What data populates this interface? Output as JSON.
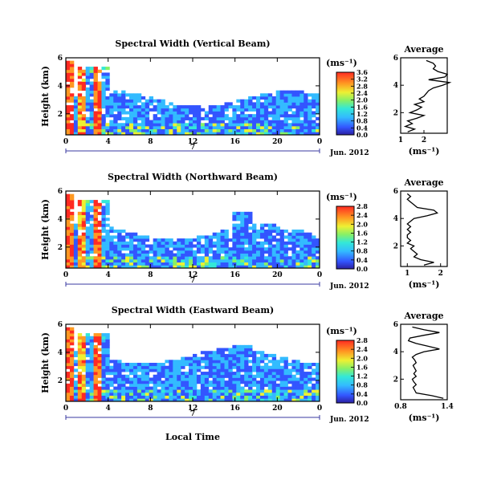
{
  "figure": {
    "date": "Jun. 2012",
    "date_marker": "7",
    "x_axis_title": "Local Time",
    "colorbar_unit": "(ms⁻¹)",
    "average_x_unit": "(ms⁻¹)"
  },
  "chart_data": [
    {
      "type": "heatmap",
      "title": "Spectral Width (Vertical Beam)",
      "ylabel": "Height (km)",
      "x_ticks": [
        "0",
        "4",
        "8",
        "12",
        "16",
        "20",
        "0"
      ],
      "y_ticks": [
        "2",
        "4",
        "6"
      ],
      "xlim": [
        0,
        24
      ],
      "ylim": [
        0.5,
        6
      ],
      "colorbar": {
        "ticks": [
          "0.0",
          "0.4",
          "0.8",
          "1.2",
          "1.6",
          "2.0",
          "2.4",
          "2.8",
          "3.2",
          "3.6"
        ],
        "range": [
          0,
          3.6
        ]
      },
      "average": {
        "title": "Average",
        "x_ticks": [
          "1",
          "2"
        ],
        "xlim": [
          1,
          3
        ],
        "y_ticks": [
          "2",
          "4",
          "6"
        ],
        "ylim": [
          0.5,
          6
        ],
        "height": [
          0.6,
          0.8,
          1.0,
          1.2,
          1.4,
          1.6,
          1.8,
          2.0,
          2.2,
          2.4,
          2.6,
          2.8,
          3.0,
          3.2,
          3.4,
          3.6,
          3.8,
          4.0,
          4.2,
          4.4,
          4.6,
          4.8,
          5.0,
          5.2,
          5.4,
          5.6,
          5.8
        ],
        "value": [
          1.3,
          1.6,
          1.2,
          1.5,
          1.3,
          1.7,
          2.0,
          1.4,
          1.7,
          1.9,
          1.6,
          2.0,
          1.8,
          2.0,
          2.1,
          2.2,
          2.4,
          2.8,
          3.1,
          2.2,
          2.9,
          3.0,
          2.6,
          2.4,
          2.5,
          2.4,
          2.1
        ]
      }
    },
    {
      "type": "heatmap",
      "title": "Spectral Width (Northward Beam)",
      "ylabel": "Height (km)",
      "x_ticks": [
        "0",
        "4",
        "8",
        "12",
        "16",
        "20",
        "0"
      ],
      "y_ticks": [
        "2",
        "4",
        "6"
      ],
      "xlim": [
        0,
        24
      ],
      "ylim": [
        0.5,
        6
      ],
      "colorbar": {
        "ticks": [
          "0.0",
          "0.4",
          "0.8",
          "1.2",
          "1.6",
          "2.0",
          "2.4",
          "2.8"
        ],
        "range": [
          0,
          2.8
        ]
      },
      "average": {
        "title": "Average",
        "x_ticks": [
          "1",
          "2"
        ],
        "xlim": [
          0.8,
          2.2
        ],
        "y_ticks": [
          "2",
          "4",
          "6"
        ],
        "ylim": [
          0.5,
          6
        ],
        "height": [
          0.6,
          0.8,
          1.0,
          1.2,
          1.4,
          1.6,
          1.8,
          2.0,
          2.2,
          2.4,
          2.6,
          2.8,
          3.0,
          3.2,
          3.4,
          3.6,
          3.8,
          4.0,
          4.2,
          4.4,
          4.6,
          4.8,
          5.0,
          5.2,
          5.4,
          5.6,
          5.8
        ],
        "value": [
          1.5,
          1.8,
          1.4,
          1.2,
          1.3,
          1.2,
          1.1,
          1.2,
          1.0,
          1.1,
          1.0,
          1.0,
          1.1,
          1.0,
          1.1,
          1.0,
          1.1,
          1.2,
          1.6,
          1.9,
          1.8,
          1.3,
          1.2,
          1.1,
          1.0,
          1.1,
          1.0
        ]
      }
    },
    {
      "type": "heatmap",
      "title": "Spectral Width (Eastward Beam)",
      "ylabel": "Height (km)",
      "x_ticks": [
        "0",
        "4",
        "8",
        "12",
        "16",
        "20",
        "0"
      ],
      "y_ticks": [
        "2",
        "4",
        "6"
      ],
      "xlim": [
        0,
        24
      ],
      "ylim": [
        0.5,
        6
      ],
      "colorbar": {
        "ticks": [
          "0.0",
          "0.4",
          "0.8",
          "1.2",
          "1.6",
          "2.0",
          "2.4",
          "2.8"
        ],
        "range": [
          0,
          2.8
        ]
      },
      "average": {
        "title": "Average",
        "x_ticks": [
          "0.8",
          "1.4"
        ],
        "xlim": [
          0.8,
          1.4
        ],
        "y_ticks": [
          "2",
          "4",
          "6"
        ],
        "ylim": [
          0.5,
          6
        ],
        "height": [
          0.6,
          0.8,
          1.0,
          1.2,
          1.4,
          1.6,
          1.8,
          2.0,
          2.2,
          2.4,
          2.6,
          2.8,
          3.0,
          3.2,
          3.4,
          3.6,
          3.8,
          4.0,
          4.2,
          4.4,
          4.6,
          4.8,
          5.0,
          5.2,
          5.4,
          5.6,
          5.8
        ],
        "value": [
          1.35,
          1.2,
          1.0,
          0.98,
          0.96,
          1.0,
          0.97,
          0.95,
          1.0,
          0.97,
          1.0,
          0.98,
          0.96,
          1.0,
          0.98,
          0.95,
          1.0,
          1.1,
          1.3,
          1.15,
          1.0,
          0.9,
          0.92,
          1.1,
          1.3,
          1.1,
          0.95
        ]
      }
    }
  ]
}
